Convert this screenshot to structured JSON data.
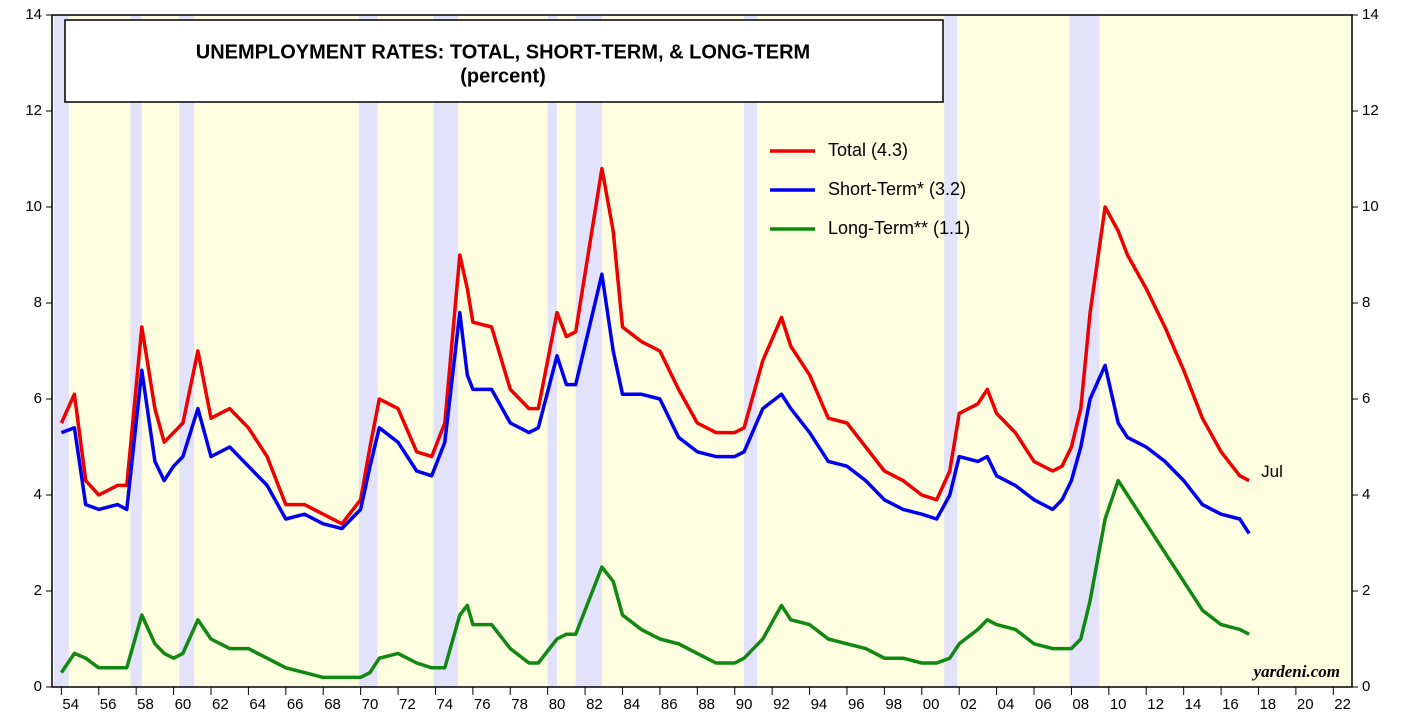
{
  "chart_data": {
    "type": "line",
    "title": "UNEMPLOYMENT RATES: TOTAL, SHORT-TERM, & LONG-TERM",
    "subtitle": "(percent)",
    "annotation": "Jul",
    "source": "yardeni.com",
    "x": [
      1954.0,
      1954.7,
      1955.3,
      1956.0,
      1957.0,
      1957.5,
      1958.3,
      1959.0,
      1959.5,
      1960.0,
      1960.5,
      1961.3,
      1962.0,
      1963.0,
      1964.0,
      1965.0,
      1966.0,
      1967.0,
      1968.0,
      1969.0,
      1970.0,
      1970.5,
      1971.0,
      1972.0,
      1973.0,
      1973.8,
      1974.5,
      1975.3,
      1975.7,
      1976.0,
      1977.0,
      1978.0,
      1979.0,
      1979.5,
      1980.5,
      1981.0,
      1981.5,
      1982.9,
      1983.5,
      1984.0,
      1985.0,
      1986.0,
      1987.0,
      1988.0,
      1989.0,
      1990.0,
      1990.5,
      1991.5,
      1992.5,
      1993.0,
      1994.0,
      1995.0,
      1996.0,
      1997.0,
      1998.0,
      1999.0,
      2000.0,
      2000.8,
      2001.5,
      2002.0,
      2003.0,
      2003.5,
      2004.0,
      2005.0,
      2006.0,
      2007.0,
      2007.5,
      2008.0,
      2008.5,
      2009.0,
      2009.8,
      2010.5,
      2011.0,
      2012.0,
      2013.0,
      2014.0,
      2015.0,
      2016.0,
      2017.0,
      2017.5
    ],
    "series": [
      {
        "name": "Total (4.3)",
        "color": "#ee0000",
        "values": [
          5.5,
          6.1,
          4.3,
          4.0,
          4.2,
          4.2,
          7.5,
          5.8,
          5.1,
          5.3,
          5.5,
          7.0,
          5.6,
          5.8,
          5.4,
          4.8,
          3.8,
          3.8,
          3.6,
          3.4,
          3.9,
          5.0,
          6.0,
          5.8,
          4.9,
          4.8,
          5.5,
          9.0,
          8.3,
          7.6,
          7.5,
          6.2,
          5.8,
          5.8,
          7.8,
          7.3,
          7.4,
          10.8,
          9.5,
          7.5,
          7.2,
          7.0,
          6.2,
          5.5,
          5.3,
          5.3,
          5.4,
          6.8,
          7.7,
          7.1,
          6.5,
          5.6,
          5.5,
          5.0,
          4.5,
          4.3,
          4.0,
          3.9,
          4.5,
          5.7,
          5.9,
          6.2,
          5.7,
          5.3,
          4.7,
          4.5,
          4.6,
          5.0,
          5.8,
          7.8,
          10.0,
          9.5,
          9.0,
          8.3,
          7.5,
          6.6,
          5.6,
          4.9,
          4.4,
          4.3
        ]
      },
      {
        "name": "Short-Term* (3.2)",
        "color": "#0000ee",
        "values": [
          5.3,
          5.4,
          3.8,
          3.7,
          3.8,
          3.7,
          6.6,
          4.7,
          4.3,
          4.6,
          4.8,
          5.8,
          4.8,
          5.0,
          4.6,
          4.2,
          3.5,
          3.6,
          3.4,
          3.3,
          3.7,
          4.6,
          5.4,
          5.1,
          4.5,
          4.4,
          5.1,
          7.8,
          6.5,
          6.2,
          6.2,
          5.5,
          5.3,
          5.4,
          6.9,
          6.3,
          6.3,
          8.6,
          7.0,
          6.1,
          6.1,
          6.0,
          5.2,
          4.9,
          4.8,
          4.8,
          4.9,
          5.8,
          6.1,
          5.8,
          5.3,
          4.7,
          4.6,
          4.3,
          3.9,
          3.7,
          3.6,
          3.5,
          4.0,
          4.8,
          4.7,
          4.8,
          4.4,
          4.2,
          3.9,
          3.7,
          3.9,
          4.3,
          5.0,
          6.0,
          6.7,
          5.5,
          5.2,
          5.0,
          4.7,
          4.3,
          3.8,
          3.6,
          3.5,
          3.2
        ]
      },
      {
        "name": "Long-Term** (1.1)",
        "color": "#118811",
        "values": [
          0.3,
          0.7,
          0.6,
          0.4,
          0.4,
          0.4,
          1.5,
          0.9,
          0.7,
          0.6,
          0.7,
          1.4,
          1.0,
          0.8,
          0.8,
          0.6,
          0.4,
          0.3,
          0.2,
          0.2,
          0.2,
          0.3,
          0.6,
          0.7,
          0.5,
          0.4,
          0.4,
          1.5,
          1.7,
          1.3,
          1.3,
          0.8,
          0.5,
          0.5,
          1.0,
          1.1,
          1.1,
          2.5,
          2.2,
          1.5,
          1.2,
          1.0,
          0.9,
          0.7,
          0.5,
          0.5,
          0.6,
          1.0,
          1.7,
          1.4,
          1.3,
          1.0,
          0.9,
          0.8,
          0.6,
          0.6,
          0.5,
          0.5,
          0.6,
          0.9,
          1.2,
          1.4,
          1.3,
          1.2,
          0.9,
          0.8,
          0.8,
          0.8,
          1.0,
          1.8,
          3.5,
          4.3,
          4.0,
          3.4,
          2.8,
          2.2,
          1.6,
          1.3,
          1.2,
          1.1
        ]
      }
    ],
    "recessions": [
      [
        1953.6,
        1954.4
      ],
      [
        1957.7,
        1958.3
      ],
      [
        1960.3,
        1961.1
      ],
      [
        1969.9,
        1970.9
      ],
      [
        1973.9,
        1975.2
      ],
      [
        1980.0,
        1980.5
      ],
      [
        1981.5,
        1982.9
      ],
      [
        1990.5,
        1991.2
      ],
      [
        2001.2,
        2001.9
      ],
      [
        2007.9,
        2009.5
      ]
    ],
    "xlim": [
      1953.5,
      2023
    ],
    "xticks": [
      {
        "value": 1954,
        "label": "54"
      },
      {
        "value": 1956,
        "label": "56"
      },
      {
        "value": 1958,
        "label": "58"
      },
      {
        "value": 1960,
        "label": "60"
      },
      {
        "value": 1962,
        "label": "62"
      },
      {
        "value": 1964,
        "label": "64"
      },
      {
        "value": 1966,
        "label": "66"
      },
      {
        "value": 1968,
        "label": "68"
      },
      {
        "value": 1970,
        "label": "70"
      },
      {
        "value": 1972,
        "label": "72"
      },
      {
        "value": 1974,
        "label": "74"
      },
      {
        "value": 1976,
        "label": "76"
      },
      {
        "value": 1978,
        "label": "78"
      },
      {
        "value": 1980,
        "label": "80"
      },
      {
        "value": 1982,
        "label": "82"
      },
      {
        "value": 1984,
        "label": "84"
      },
      {
        "value": 1986,
        "label": "86"
      },
      {
        "value": 1988,
        "label": "88"
      },
      {
        "value": 1990,
        "label": "90"
      },
      {
        "value": 1992,
        "label": "92"
      },
      {
        "value": 1994,
        "label": "94"
      },
      {
        "value": 1996,
        "label": "96"
      },
      {
        "value": 1998,
        "label": "98"
      },
      {
        "value": 2000,
        "label": "00"
      },
      {
        "value": 2002,
        "label": "02"
      },
      {
        "value": 2004,
        "label": "04"
      },
      {
        "value": 2006,
        "label": "06"
      },
      {
        "value": 2008,
        "label": "08"
      },
      {
        "value": 2010,
        "label": "10"
      },
      {
        "value": 2012,
        "label": "12"
      },
      {
        "value": 2014,
        "label": "14"
      },
      {
        "value": 2016,
        "label": "16"
      },
      {
        "value": 2018,
        "label": "18"
      },
      {
        "value": 2020,
        "label": "20"
      },
      {
        "value": 2022,
        "label": "22"
      }
    ],
    "ylim": [
      0,
      14
    ],
    "yticks": [
      0,
      2,
      4,
      6,
      8,
      10,
      12,
      14
    ],
    "grid": false
  }
}
